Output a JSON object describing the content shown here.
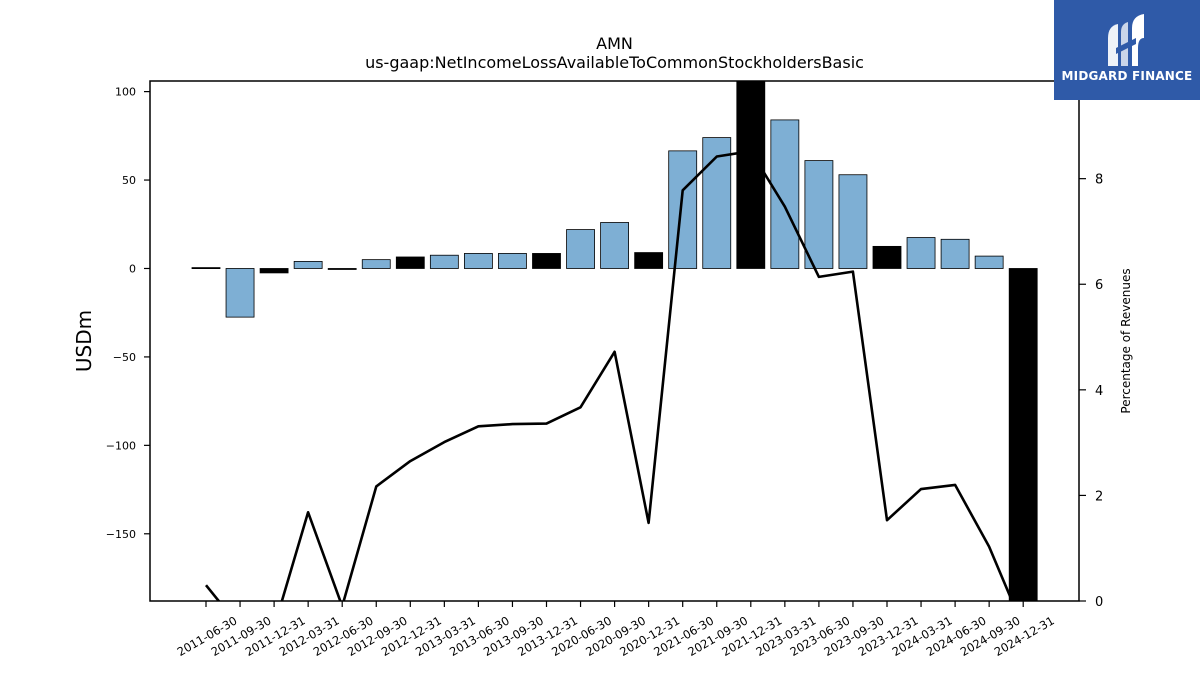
{
  "chart_data": {
    "type": "bar",
    "title": "AMN",
    "subtitle": "us-gaap:NetIncomeLossAvailableToCommonStockholdersBasic",
    "ylabel": "USDm",
    "y2label": "Percentage of Revenues",
    "ylim": [
      -188,
      106
    ],
    "y2lim": [
      0,
      9.85
    ],
    "yticks": [
      100,
      50,
      0,
      -50,
      -100,
      -150
    ],
    "ytick_labels": [
      "100",
      "50",
      "0",
      "−50",
      "−100",
      "−150"
    ],
    "y2ticks": [
      0,
      2,
      4,
      6,
      8
    ],
    "y2tick_labels": [
      "0",
      "2",
      "4",
      "6",
      "8"
    ],
    "grid": false,
    "categories": [
      "2011-06-30",
      "2011-09-30",
      "2011-12-31",
      "2012-03-31",
      "2012-06-30",
      "2012-09-30",
      "2012-12-31",
      "2013-03-31",
      "2013-06-30",
      "2013-09-30",
      "2013-12-31",
      "2020-06-30",
      "2020-09-30",
      "2020-12-31",
      "2021-06-30",
      "2021-09-30",
      "2021-12-31",
      "2023-03-31",
      "2023-06-30",
      "2023-09-30",
      "2023-12-31",
      "2024-03-31",
      "2024-06-30",
      "2024-09-30",
      "2024-12-31"
    ],
    "series": [
      {
        "kind": "bar",
        "values": [
          0.5,
          -27.5,
          -2.5,
          4,
          -0.5,
          5,
          6.5,
          7.5,
          8.5,
          8.5,
          8.5,
          22,
          26,
          9,
          66.5,
          74,
          110,
          84,
          61,
          53,
          12.5,
          17.5,
          16.5,
          7,
          -188
        ],
        "colors": [
          "#000000",
          "#7eafd4",
          "#000000",
          "#7eafd4",
          "#000000",
          "#7eafd4",
          "#000000",
          "#7eafd4",
          "#7eafd4",
          "#7eafd4",
          "#000000",
          "#7eafd4",
          "#7eafd4",
          "#000000",
          "#7eafd4",
          "#7eafd4",
          "#000000",
          "#7eafd4",
          "#7eafd4",
          "#7eafd4",
          "#000000",
          "#7eafd4",
          "#7eafd4",
          "#7eafd4",
          "#000000"
        ]
      },
      {
        "kind": "line",
        "axis": "right",
        "values": [
          0.3,
          -0.5,
          -0.5,
          1.68,
          -0.1,
          2.17,
          2.65,
          3.01,
          3.31,
          3.35,
          3.36,
          3.67,
          4.72,
          1.48,
          7.78,
          8.42,
          8.52,
          7.47,
          6.14,
          6.24,
          1.53,
          2.12,
          2.2,
          1.03,
          -0.5
        ],
        "color": "#000000"
      }
    ]
  },
  "logo": {
    "text": "MIDGARD FINANCE",
    "background": "#2f5aa8"
  }
}
